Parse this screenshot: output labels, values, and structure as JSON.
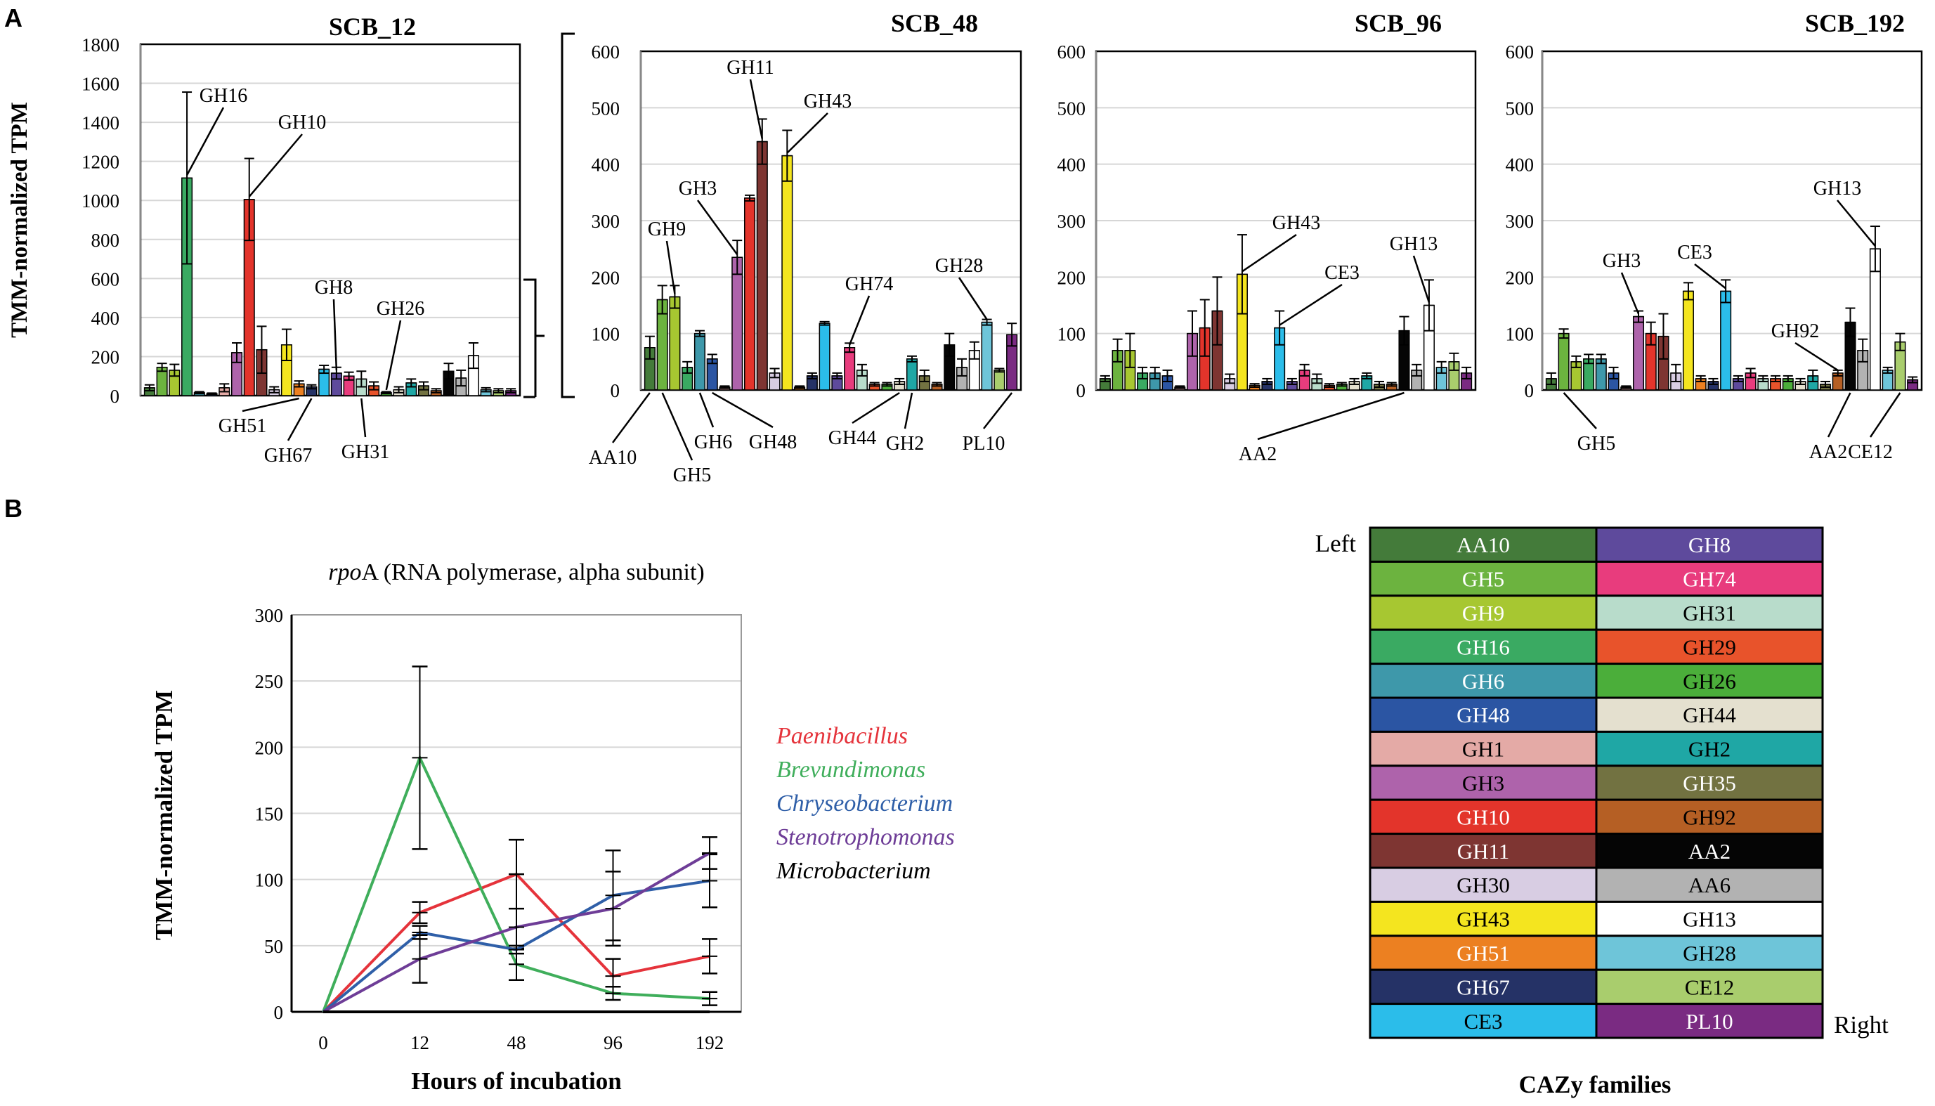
{
  "figure": {
    "panel_a_letter": "A",
    "panel_b_letter": "B"
  },
  "chart_data": [
    {
      "type": "bar",
      "panel": "A",
      "title": "SCB_12",
      "ylabel": "TMM-normalized TPM",
      "ylim": [
        0,
        1800
      ],
      "yticks": [
        0,
        200,
        400,
        600,
        800,
        1000,
        1200,
        1400,
        1600,
        1800
      ],
      "grid": true,
      "categories": [
        "AA10",
        "GH5",
        "GH9",
        "GH16",
        "GH6",
        "GH48",
        "GH1",
        "GH3",
        "GH10",
        "GH11",
        "GH30",
        "GH43",
        "GH51",
        "GH67",
        "CE3",
        "GH8",
        "GH74",
        "GH31",
        "GH29",
        "GH26",
        "GH44",
        "GH2",
        "GH35",
        "GH92",
        "AA2",
        "AA6",
        "GH13",
        "GH28",
        "CE12",
        "PL10"
      ],
      "values": [
        40,
        145,
        130,
        1115,
        15,
        10,
        40,
        220,
        1005,
        235,
        30,
        260,
        60,
        45,
        135,
        115,
        100,
        85,
        50,
        15,
        30,
        65,
        50,
        25,
        125,
        90,
        205,
        30,
        25,
        25
      ],
      "errors": [
        15,
        20,
        30,
        440,
        5,
        3,
        20,
        50,
        210,
        120,
        15,
        80,
        15,
        10,
        20,
        30,
        20,
        40,
        20,
        5,
        15,
        20,
        20,
        10,
        40,
        40,
        65,
        10,
        10,
        10
      ],
      "annotations": [
        "GH16",
        "GH10",
        "GH8",
        "GH26",
        "GH51",
        "GH67",
        "GH31"
      ]
    },
    {
      "type": "bar",
      "panel": "A",
      "title": "SCB_48",
      "ylabel": "",
      "ylim": [
        0,
        600
      ],
      "yticks": [
        0,
        100,
        200,
        300,
        400,
        500,
        600
      ],
      "grid": true,
      "categories": [
        "AA10",
        "GH5",
        "GH9",
        "GH16",
        "GH6",
        "GH48",
        "GH1",
        "GH3",
        "GH10",
        "GH11",
        "GH30",
        "GH43",
        "GH51",
        "GH67",
        "CE3",
        "GH8",
        "GH74",
        "GH31",
        "GH29",
        "GH26",
        "GH44",
        "GH2",
        "GH35",
        "GH92",
        "AA2",
        "AA6",
        "GH13",
        "GH28",
        "CE12",
        "PL10"
      ],
      "values": [
        75,
        160,
        165,
        40,
        100,
        55,
        5,
        235,
        340,
        440,
        30,
        415,
        5,
        25,
        118,
        25,
        75,
        35,
        10,
        10,
        15,
        55,
        25,
        10,
        80,
        40,
        70,
        120,
        35,
        98
      ],
      "errors": [
        20,
        25,
        20,
        10,
        5,
        8,
        2,
        30,
        5,
        40,
        8,
        45,
        2,
        5,
        3,
        5,
        8,
        10,
        3,
        3,
        5,
        5,
        10,
        3,
        20,
        15,
        15,
        5,
        3,
        20
      ],
      "annotations": [
        "GH11",
        "GH43",
        "GH3",
        "GH9",
        "GH74",
        "GH28",
        "AA10",
        "GH5",
        "GH6",
        "GH48",
        "GH44",
        "GH2",
        "PL10"
      ]
    },
    {
      "type": "bar",
      "panel": "A",
      "title": "SCB_96",
      "ylabel": "",
      "ylim": [
        0,
        600
      ],
      "yticks": [
        0,
        100,
        200,
        300,
        400,
        500,
        600
      ],
      "grid": true,
      "categories": [
        "AA10",
        "GH5",
        "GH9",
        "GH16",
        "GH6",
        "GH48",
        "GH1",
        "GH3",
        "GH10",
        "GH11",
        "GH30",
        "GH43",
        "GH51",
        "GH67",
        "CE3",
        "GH8",
        "GH74",
        "GH31",
        "GH29",
        "GH26",
        "GH44",
        "GH2",
        "GH35",
        "GH92",
        "AA2",
        "AA6",
        "GH13",
        "GH28",
        "CE12",
        "PL10"
      ],
      "values": [
        20,
        70,
        70,
        30,
        30,
        25,
        5,
        100,
        110,
        140,
        20,
        205,
        8,
        15,
        110,
        15,
        35,
        20,
        8,
        10,
        15,
        25,
        10,
        10,
        105,
        35,
        150,
        40,
        50,
        30
      ],
      "errors": [
        5,
        20,
        30,
        10,
        10,
        10,
        2,
        40,
        50,
        60,
        8,
        70,
        3,
        5,
        30,
        5,
        10,
        8,
        3,
        3,
        5,
        5,
        5,
        3,
        25,
        10,
        45,
        10,
        15,
        10
      ],
      "annotations": [
        "GH43",
        "CE3",
        "GH13",
        "AA2"
      ]
    },
    {
      "type": "bar",
      "panel": "A",
      "title": "SCB_192",
      "ylabel": "",
      "ylim": [
        0,
        600
      ],
      "yticks": [
        0,
        100,
        200,
        300,
        400,
        500,
        600
      ],
      "grid": true,
      "categories": [
        "AA10",
        "GH5",
        "GH9",
        "GH16",
        "GH6",
        "GH48",
        "GH1",
        "GH3",
        "GH10",
        "GH11",
        "GH30",
        "GH43",
        "GH51",
        "GH67",
        "CE3",
        "GH8",
        "GH74",
        "GH31",
        "GH29",
        "GH26",
        "GH44",
        "GH2",
        "GH35",
        "GH92",
        "AA2",
        "AA6",
        "GH13",
        "GH28",
        "CE12",
        "PL10"
      ],
      "values": [
        20,
        100,
        50,
        55,
        55,
        30,
        5,
        130,
        100,
        95,
        30,
        175,
        20,
        15,
        175,
        20,
        30,
        20,
        20,
        20,
        15,
        25,
        10,
        30,
        120,
        70,
        250,
        35,
        85,
        18
      ],
      "errors": [
        10,
        8,
        10,
        8,
        8,
        10,
        2,
        10,
        20,
        40,
        15,
        15,
        5,
        5,
        20,
        5,
        8,
        5,
        5,
        5,
        5,
        10,
        5,
        5,
        25,
        20,
        40,
        5,
        15,
        5
      ],
      "annotations": [
        "GH3",
        "CE3",
        "GH13",
        "GH92",
        "GH5",
        "AA2",
        "CE12"
      ]
    },
    {
      "type": "line",
      "panel": "B",
      "title": "rpoA (RNA polymerase, alpha subunit)",
      "title_italic": "rpo",
      "title_rest": "A (RNA polymerase, alpha subunit)",
      "xlabel": "Hours of incubation",
      "ylabel": "TMM-normalized TPM",
      "categories": [
        "0",
        "12",
        "48",
        "96",
        "192"
      ],
      "ylim": [
        0,
        300
      ],
      "yticks": [
        0,
        50,
        100,
        150,
        200,
        250,
        300
      ],
      "grid": true,
      "series": [
        {
          "name": "Paenibacillus",
          "color": "#e5333b",
          "values": [
            0,
            75,
            104,
            27,
            42
          ],
          "errors": [
            0,
            8,
            26,
            13,
            13
          ]
        },
        {
          "name": "Brevundimonas",
          "color": "#3fae5b",
          "values": [
            0,
            192,
            36,
            14,
            10
          ],
          "errors": [
            0,
            69,
            12,
            5,
            5
          ]
        },
        {
          "name": "Chryseobacterium",
          "color": "#2f5fa8",
          "values": [
            0,
            60,
            47,
            88,
            99
          ],
          "errors": [
            0,
            5,
            3,
            34,
            20
          ]
        },
        {
          "name": "Stenotrophomonas",
          "color": "#6e3d97",
          "values": [
            0,
            40,
            64,
            78,
            120
          ],
          "errors": [
            0,
            18,
            40,
            28,
            12
          ]
        },
        {
          "name": "Microbacterium",
          "color": "#000000",
          "values": [
            0,
            0,
            0,
            0,
            0
          ],
          "errors": [
            0,
            0,
            0,
            0,
            0
          ]
        }
      ]
    }
  ],
  "legend": {
    "title": "CAZy families",
    "left_label": "Left",
    "right_label": "Right",
    "rows": [
      [
        {
          "name": "AA10",
          "color": "#447b3a",
          "text": "#ffffff"
        },
        {
          "name": "GH8",
          "color": "#5e4a9c",
          "text": "#ffffff"
        }
      ],
      [
        {
          "name": "GH5",
          "color": "#6cb33f",
          "text": "#ffffff"
        },
        {
          "name": "GH74",
          "color": "#e83c7d",
          "text": "#ffffff"
        }
      ],
      [
        {
          "name": "GH9",
          "color": "#a7c731",
          "text": "#ffffff"
        },
        {
          "name": "GH31",
          "color": "#b8dccb",
          "text": "#000000"
        }
      ],
      [
        {
          "name": "GH16",
          "color": "#3aaa62",
          "text": "#ffffff"
        },
        {
          "name": "GH29",
          "color": "#e8532b",
          "text": "#000000"
        }
      ],
      [
        {
          "name": "GH6",
          "color": "#3e98aa",
          "text": "#ffffff"
        },
        {
          "name": "GH26",
          "color": "#4bae3a",
          "text": "#000000"
        }
      ],
      [
        {
          "name": "GH48",
          "color": "#2b55a3",
          "text": "#ffffff"
        },
        {
          "name": "GH44",
          "color": "#e4e0cf",
          "text": "#000000"
        }
      ],
      [
        {
          "name": "GH1",
          "color": "#e4aaa6",
          "text": "#000000"
        },
        {
          "name": "GH2",
          "color": "#1fa7a5",
          "text": "#000000"
        }
      ],
      [
        {
          "name": "GH3",
          "color": "#ae63ab",
          "text": "#000000"
        },
        {
          "name": "GH35",
          "color": "#727241",
          "text": "#ffffff"
        }
      ],
      [
        {
          "name": "GH10",
          "color": "#e3342b",
          "text": "#ffffff"
        },
        {
          "name": "GH92",
          "color": "#b55f24",
          "text": "#000000"
        }
      ],
      [
        {
          "name": "GH11",
          "color": "#7e3532",
          "text": "#ffffff"
        },
        {
          "name": "AA2",
          "color": "#050505",
          "text": "#ffffff"
        }
      ],
      [
        {
          "name": "GH30",
          "color": "#d8cde3",
          "text": "#000000"
        },
        {
          "name": "AA6",
          "color": "#b2b2b2",
          "text": "#000000"
        }
      ],
      [
        {
          "name": "GH43",
          "color": "#f4e51f",
          "text": "#000000"
        },
        {
          "name": "GH13",
          "color": "#ffffff",
          "text": "#000000"
        }
      ],
      [
        {
          "name": "GH51",
          "color": "#ec8021",
          "text": "#ffffff"
        },
        {
          "name": "GH28",
          "color": "#6ec5d9",
          "text": "#000000"
        }
      ],
      [
        {
          "name": "GH67",
          "color": "#253266",
          "text": "#ffffff"
        },
        {
          "name": "CE12",
          "color": "#a9cd6d",
          "text": "#000000"
        }
      ],
      [
        {
          "name": "CE3",
          "color": "#2bbdea",
          "text": "#000000"
        },
        {
          "name": "PL10",
          "color": "#7a2b82",
          "text": "#ffffff"
        }
      ]
    ]
  }
}
